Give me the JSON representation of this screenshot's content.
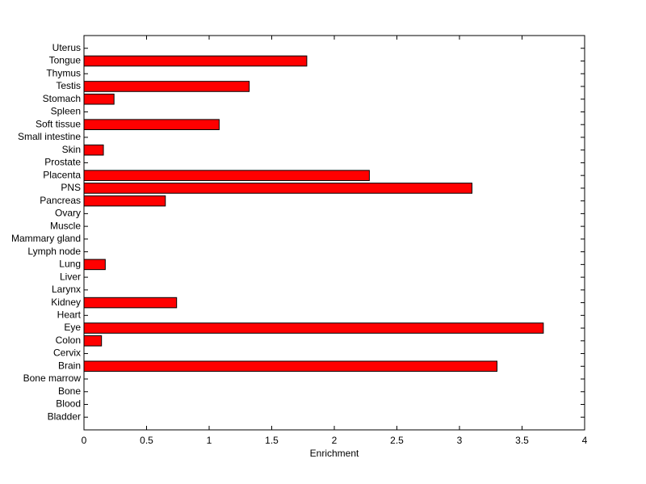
{
  "chart_data": {
    "type": "barh",
    "xlabel": "Enrichment",
    "categories": [
      "Bladder",
      "Blood",
      "Bone",
      "Bone marrow",
      "Brain",
      "Cervix",
      "Colon",
      "Eye",
      "Heart",
      "Kidney",
      "Larynx",
      "Liver",
      "Lung",
      "Lymph node",
      "Mammary gland",
      "Muscle",
      "Ovary",
      "Pancreas",
      "PNS",
      "Placenta",
      "Prostate",
      "Skin",
      "Small intestine",
      "Soft tissue",
      "Spleen",
      "Stomach",
      "Testis",
      "Thymus",
      "Tongue",
      "Uterus"
    ],
    "values": [
      0,
      0,
      0,
      0,
      3.3,
      0,
      0.14,
      3.67,
      0,
      0.74,
      0,
      0,
      0.17,
      0,
      0,
      0,
      0,
      0.65,
      3.1,
      2.28,
      0,
      0.155,
      0,
      1.08,
      0,
      0.24,
      1.32,
      0,
      1.78,
      0
    ],
    "color": "#ff0000",
    "xlim": [
      0,
      4
    ],
    "xticks": [
      0,
      0.5,
      1,
      1.5,
      2,
      2.5,
      3,
      3.5,
      4
    ]
  }
}
